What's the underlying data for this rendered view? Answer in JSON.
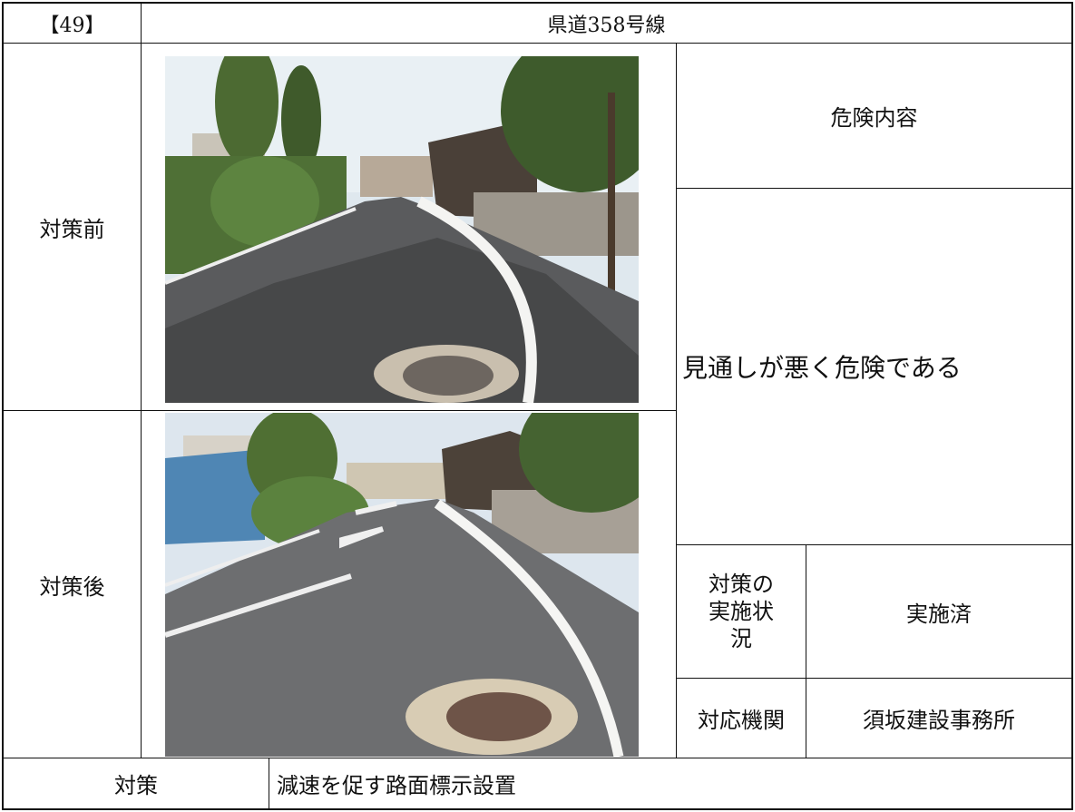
{
  "header": {
    "number": "【49】",
    "title": "県道358号線"
  },
  "photos": {
    "before_label": "対策前",
    "after_label": "対策後"
  },
  "risk": {
    "heading": "危険内容",
    "text": "見通しが悪く危険である"
  },
  "status": {
    "label": "対策の実施状況",
    "value": "実施済"
  },
  "agency": {
    "label": "対応機関",
    "value": "須坂建設事務所"
  },
  "measure": {
    "label": "対策",
    "value": "減速を促す路面標示設置"
  }
}
